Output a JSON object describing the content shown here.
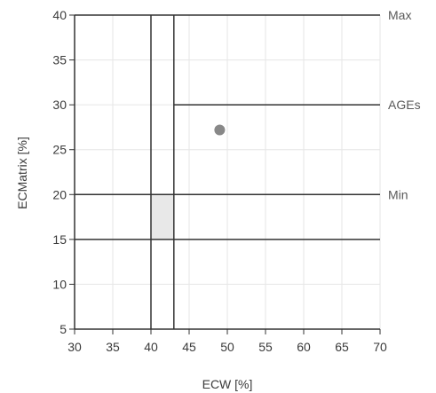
{
  "chart_data": {
    "type": "scatter",
    "xlabel": "ECW [%]",
    "ylabel": "ECMatrix [%]",
    "xlim": [
      30,
      70
    ],
    "ylim": [
      5,
      40
    ],
    "xticks": [
      "30",
      "35",
      "40",
      "45",
      "50",
      "55",
      "60",
      "65",
      "70"
    ],
    "yticks": [
      "5",
      "10",
      "15",
      "20",
      "25",
      "30",
      "35",
      "40"
    ],
    "grid": true,
    "points": [
      {
        "x": 49,
        "y": 27.2
      }
    ],
    "reference_lines": [
      {
        "orientation": "horizontal",
        "y": 40,
        "label": "Max"
      },
      {
        "orientation": "horizontal",
        "y": 30,
        "x_start": 43,
        "label": "AGEs"
      },
      {
        "orientation": "horizontal",
        "y": 20,
        "x_start": 30,
        "label": "Min"
      },
      {
        "orientation": "horizontal",
        "y": 15,
        "x_start": 30,
        "label": ""
      },
      {
        "orientation": "vertical",
        "x": 40,
        "label": ""
      },
      {
        "orientation": "vertical",
        "x": 43,
        "label": ""
      }
    ],
    "shaded_regions": [
      {
        "x": [
          40,
          43
        ],
        "y": [
          15,
          20
        ]
      }
    ],
    "colors": {
      "grid": "#e6e6e6",
      "axis": "#333333",
      "reference_line": "#333333",
      "point": "#888888",
      "shaded": "#e8e8e8",
      "text": "#3a3a3a"
    }
  }
}
